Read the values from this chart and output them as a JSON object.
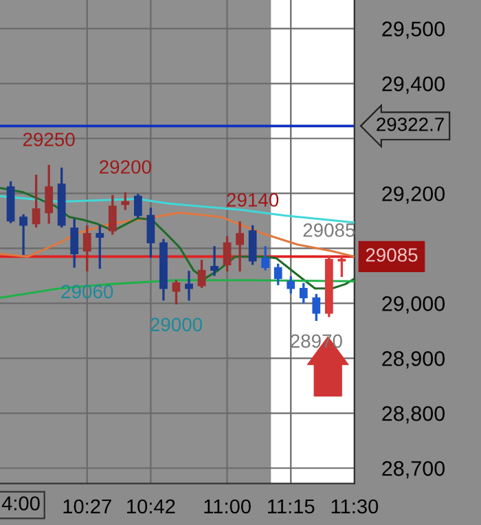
{
  "chart_data": {
    "type": "candlestick",
    "x": [
      10.15,
      10.2,
      10.25,
      10.3,
      10.35,
      10.4,
      10.45,
      10.5,
      10.55,
      10.6,
      10.65,
      10.7,
      10.75,
      10.8,
      10.85,
      10.9,
      10.95,
      11.0,
      11.05,
      11.1,
      11.15,
      11.2,
      11.25,
      11.3,
      11.35,
      11.4,
      11.45
    ],
    "ohlc": [
      [
        29212,
        29220,
        29148,
        29150
      ],
      [
        29157,
        29160,
        29090,
        29142
      ],
      [
        29145,
        29232,
        29140,
        29172
      ],
      [
        29165,
        29250,
        29147,
        29212
      ],
      [
        29217,
        29245,
        29140,
        29142
      ],
      [
        29137,
        29152,
        29067,
        29090
      ],
      [
        29095,
        29140,
        29060,
        29127
      ],
      [
        29127,
        29140,
        29065,
        29120
      ],
      [
        29132,
        29195,
        29127,
        29177
      ],
      [
        29180,
        29200,
        29172,
        29185
      ],
      [
        29195,
        29197,
        29157,
        29160
      ],
      [
        29160,
        29172,
        29085,
        29110
      ],
      [
        29110,
        29115,
        29007,
        29027
      ],
      [
        29022,
        29040,
        29000,
        29037
      ],
      [
        29035,
        29057,
        29007,
        29027
      ],
      [
        29032,
        29077,
        29030,
        29060
      ],
      [
        29067,
        29102,
        29052,
        29060
      ],
      [
        29070,
        29120,
        29060,
        29110
      ],
      [
        29107,
        29147,
        29060,
        29127
      ],
      [
        29132,
        29140,
        29072,
        29077
      ],
      [
        29082,
        29102,
        29062,
        29065
      ],
      [
        29065,
        29070,
        29035,
        29045
      ],
      [
        29040,
        29047,
        29020,
        29027
      ],
      [
        29027,
        29035,
        29002,
        29010
      ],
      [
        29010,
        29015,
        28970,
        28982
      ],
      [
        28982,
        29085,
        28977,
        29080
      ],
      [
        29077,
        29085,
        29050,
        29080
      ]
    ],
    "colors": [
      "#1b3a8a",
      "#1b3a8a",
      "#9c2f2f",
      "#9c2f2f",
      "#1b3a8a",
      "#1b3a8a",
      "#9c2f2f",
      "#1b3a8a",
      "#9c2f2f",
      "#9c2f2f",
      "#1b3a8a",
      "#1b3a8a",
      "#1b3a8a",
      "#9c2f2f",
      "#1b3a8a",
      "#9c2f2f",
      "#1b3a8a",
      "#9c2f2f",
      "#9c2f2f",
      "#1b3a8a",
      "#1f5bd0",
      "#1f5bd0",
      "#1f5bd0",
      "#1f5bd0",
      "#1f5bd0",
      "#d93a3a",
      "#d93a3a"
    ],
    "series": [
      {
        "type": "line",
        "color": "#40d8d8",
        "x": [
          10.108,
          10.342,
          10.65,
          10.76,
          11.058,
          11.222,
          11.5
        ],
        "values": [
          29195,
          29185,
          29190,
          29182,
          29170,
          29160,
          29147
        ]
      },
      {
        "type": "line",
        "color": "#e07840",
        "x": [
          10.108,
          10.217,
          10.342,
          10.407,
          10.542,
          10.65,
          10.813,
          10.977,
          11.14,
          11.275,
          11.412,
          11.5
        ],
        "values": [
          29090,
          29085,
          29110,
          29127,
          29145,
          29152,
          29165,
          29157,
          29127,
          29107,
          29095,
          29085
        ]
      },
      {
        "type": "line",
        "color": "#1f6b2a",
        "x": [
          10.108,
          10.2,
          10.325,
          10.38,
          10.433,
          10.488,
          10.553,
          10.607,
          10.65,
          10.705,
          10.76,
          10.813,
          10.868,
          10.912,
          10.965,
          11.032,
          11.14,
          11.193,
          11.275,
          11.345,
          11.412,
          11.465,
          11.5
        ],
        "values": [
          29210,
          29202,
          29177,
          29157,
          29152,
          29145,
          29132,
          29145,
          29155,
          29152,
          29127,
          29102,
          29060,
          29045,
          29060,
          29085,
          29085,
          29082,
          29052,
          29027,
          29027,
          29035,
          29045
        ]
      },
      {
        "type": "line",
        "color": "#22b04a",
        "x": [
          10.108,
          10.342,
          10.542,
          10.803,
          11.085,
          11.5
        ],
        "values": [
          29010,
          29027,
          29035,
          29042,
          29042,
          29040
        ]
      }
    ],
    "annotations": [
      "4:00",
      {
        "text": "29250",
        "x": 10.3,
        "y": 29250
      },
      {
        "text": "29200",
        "x": 10.6,
        "y": 29200
      },
      {
        "text": "29140",
        "x": 11.1,
        "y": 29140
      },
      {
        "text": "29060",
        "x": 10.45,
        "y": 29060
      },
      {
        "text": "29000",
        "x": 10.8,
        "y": 29000
      },
      {
        "text": "28970",
        "x": 11.35,
        "y": 28970
      },
      {
        "text": "29085",
        "x": 11.4,
        "y": 29085
      }
    ],
    "ref_lines": [
      {
        "axis": "y",
        "value": 29322.7,
        "label": "29322.7",
        "color": "#1030c0"
      },
      {
        "axis": "y",
        "value": 29085,
        "label": "29085",
        "color": "#e02020"
      }
    ],
    "bands": [
      {
        "axis": "x",
        "from": 11.172,
        "to": 11.5,
        "color": "#ffffff"
      }
    ],
    "xlim": [
      10.108,
      11.5
    ],
    "ylim": [
      28672,
      29552
    ],
    "xticks": [
      {
        "value": 10.45,
        "label": "10:27"
      },
      {
        "value": 10.7,
        "label": "10:42"
      },
      {
        "value": 11.0,
        "label": "11:00"
      },
      {
        "value": 11.25,
        "label": "11:15"
      },
      {
        "value": 11.5,
        "label": "11:30"
      }
    ],
    "yticks": [
      {
        "value": 28700,
        "label": "28,700"
      },
      {
        "value": 28800,
        "label": "28,800"
      },
      {
        "value": 28900,
        "label": "28,900"
      },
      {
        "value": 29000,
        "label": "29,000"
      },
      {
        "value": 29100,
        "label": null
      },
      {
        "value": 29200,
        "label": "29,200"
      },
      {
        "value": 29300,
        "label": null
      },
      {
        "value": 29400,
        "label": "29,400"
      },
      {
        "value": 29500,
        "label": "29,500"
      }
    ],
    "grid": true,
    "legend": false
  }
}
